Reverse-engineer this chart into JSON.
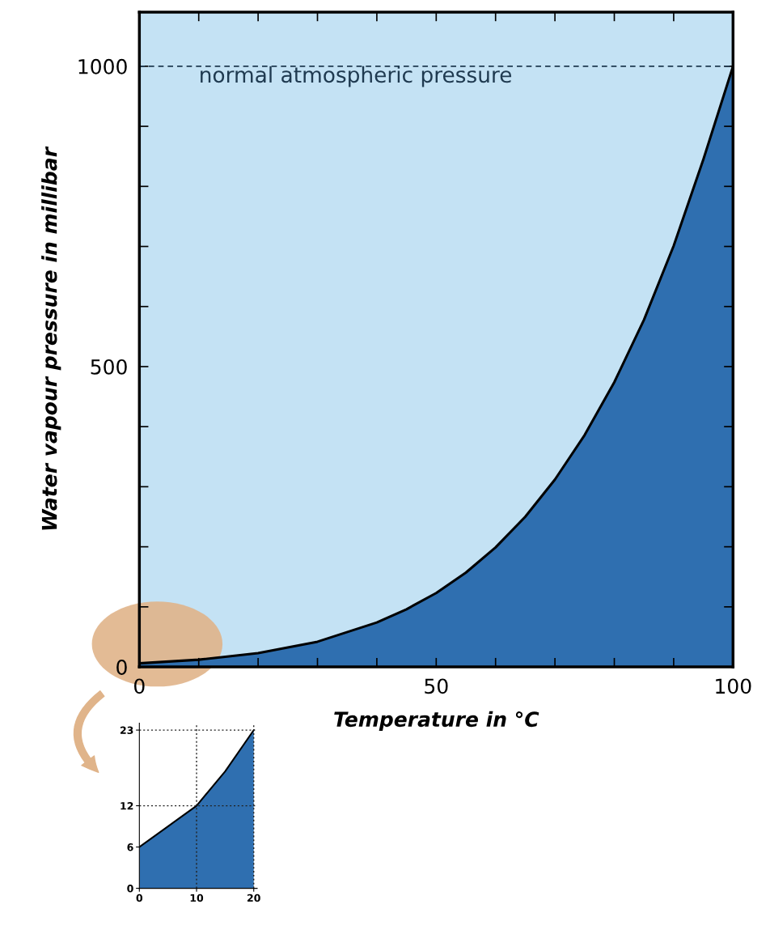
{
  "chart_data": [
    {
      "type": "area",
      "xlabel": "Temperature in °C",
      "ylabel": "Water vapour pressure in millibar",
      "x": [
        0,
        10,
        20,
        30,
        40,
        45,
        50,
        55,
        60,
        65,
        70,
        75,
        80,
        85,
        90,
        95,
        100
      ],
      "series": [
        {
          "color": "#2f6fb0",
          "values": [
            6,
            12,
            23,
            42,
            74,
            96,
            123,
            157,
            199,
            250,
            312,
            386,
            474,
            578,
            701,
            845,
            1000
          ]
        }
      ],
      "xlim": [
        0,
        100
      ],
      "ylim": [
        0,
        1090
      ],
      "xticks": [
        0,
        {
          "value": 10,
          "label": null
        },
        {
          "value": 20,
          "label": null
        },
        {
          "value": 30,
          "label": null
        },
        {
          "value": 40,
          "label": null
        },
        50,
        {
          "value": 60,
          "label": null
        },
        {
          "value": 70,
          "label": null
        },
        {
          "value": 80,
          "label": null
        },
        {
          "value": 90,
          "label": null
        },
        100
      ],
      "yticks": [
        0,
        {
          "value": 100,
          "label": null
        },
        {
          "value": 200,
          "label": null
        },
        {
          "value": 300,
          "label": null
        },
        {
          "value": 400,
          "label": null
        },
        500,
        {
          "value": 600,
          "label": null
        },
        {
          "value": 700,
          "label": null
        },
        {
          "value": 800,
          "label": null
        },
        {
          "value": 900,
          "label": null
        },
        1000
      ],
      "ref_lines": [
        {
          "axis": "y",
          "value": 1000,
          "label": "normal atmospheric pressure",
          "color": "#1f3a50",
          "line_style": "dashed"
        }
      ],
      "grid": false
    },
    {
      "type": "area",
      "x": [
        0,
        5,
        10,
        15,
        20
      ],
      "series": [
        {
          "color": "#2f6fb0",
          "values": [
            6,
            9,
            12,
            17,
            23
          ]
        }
      ],
      "xlim": [
        0,
        20.6
      ],
      "ylim": [
        0,
        24
      ],
      "xticks": [
        0,
        10,
        20
      ],
      "yticks": [
        0,
        6,
        12,
        23
      ],
      "ref_lines": [
        {
          "axis": "y",
          "value": 12,
          "color": "#222222",
          "line_style": "dotted"
        },
        {
          "axis": "y",
          "value": 23,
          "color": "#222222",
          "line_style": "dotted"
        },
        {
          "axis": "x",
          "value": 10,
          "color": "#222222",
          "line_style": "dotted"
        },
        {
          "axis": "x",
          "value": 20,
          "color": "#222222",
          "line_style": "dotted"
        }
      ],
      "grid": false
    }
  ]
}
